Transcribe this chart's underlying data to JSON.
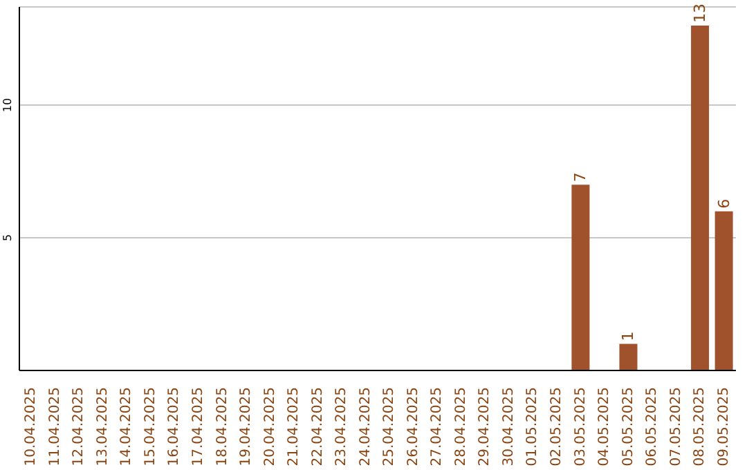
{
  "chart_data": {
    "type": "bar",
    "categories": [
      "10.04.2025",
      "11.04.2025",
      "12.04.2025",
      "13.04.2025",
      "14.04.2025",
      "15.04.2025",
      "16.04.2025",
      "17.04.2025",
      "18.04.2025",
      "19.04.2025",
      "20.04.2025",
      "21.04.2025",
      "22.04.2025",
      "23.04.2025",
      "24.04.2025",
      "25.04.2025",
      "26.04.2025",
      "27.04.2025",
      "28.04.2025",
      "29.04.2025",
      "30.04.2025",
      "01.05.2025",
      "02.05.2025",
      "03.05.2025",
      "04.05.2025",
      "05.05.2025",
      "06.05.2025",
      "07.05.2025",
      "08.05.2025",
      "09.05.2025"
    ],
    "values": [
      0,
      0,
      0,
      0,
      0,
      0,
      0,
      0,
      0,
      0,
      0,
      0,
      0,
      0,
      0,
      0,
      0,
      0,
      0,
      0,
      0,
      0,
      0,
      7,
      0,
      1,
      0,
      0,
      13,
      6
    ],
    "value_labels": [
      null,
      null,
      null,
      null,
      null,
      null,
      null,
      null,
      null,
      null,
      null,
      null,
      null,
      null,
      null,
      null,
      null,
      null,
      null,
      null,
      null,
      null,
      null,
      "7",
      null,
      "1",
      null,
      null,
      "13",
      "6"
    ],
    "color": "#a0522d",
    "ylim": [
      0,
      13.7
    ],
    "yticks": [
      5,
      10
    ],
    "grid": "y"
  }
}
